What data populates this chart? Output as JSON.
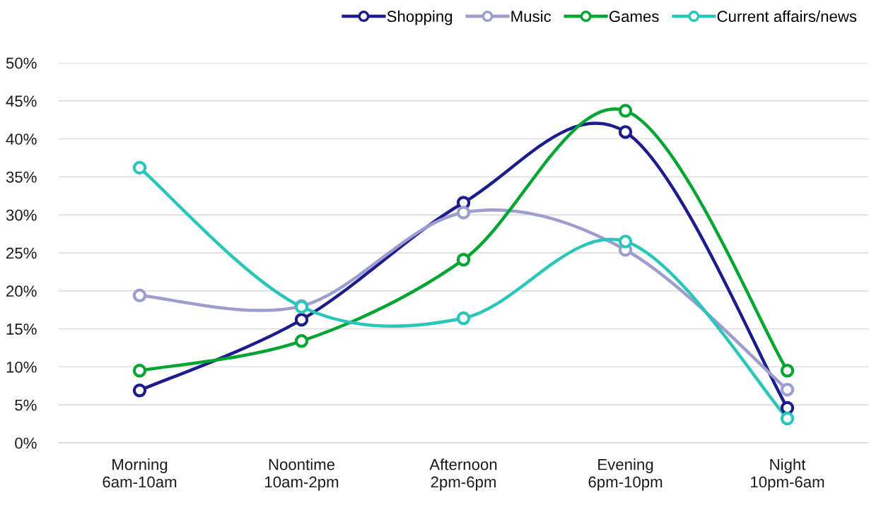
{
  "chart_data": {
    "type": "line",
    "categories": [
      "Morning\n6am-10am",
      "Noontime\n10am-2pm",
      "Afternoon\n2pm-6pm",
      "Evening\n6pm-10pm",
      "Night\n10pm-6am"
    ],
    "series": [
      {
        "name": "Shopping",
        "color": "#1c1c8c",
        "values": [
          6.9,
          16.2,
          31.6,
          40.9,
          4.6
        ]
      },
      {
        "name": "Music",
        "color": "#9d9dcf",
        "values": [
          19.4,
          18.0,
          30.3,
          25.4,
          7.0
        ]
      },
      {
        "name": "Games",
        "color": "#00a532",
        "values": [
          9.5,
          13.4,
          24.1,
          43.7,
          9.5
        ]
      },
      {
        "name": "Current affairs/news",
        "color": "#2ac6ba",
        "values": [
          36.2,
          17.9,
          16.4,
          26.5,
          3.2
        ]
      }
    ],
    "ylim": [
      0,
      50
    ],
    "yticks": [
      {
        "value": 0,
        "label": "0%"
      },
      {
        "value": 5,
        "label": "5%"
      },
      {
        "value": 10,
        "label": "10%"
      },
      {
        "value": 15,
        "label": "15%"
      },
      {
        "value": 20,
        "label": "20%"
      },
      {
        "value": 25,
        "label": "25%"
      },
      {
        "value": 30,
        "label": "30%"
      },
      {
        "value": 35,
        "label": "35%"
      },
      {
        "value": 40,
        "label": "40%"
      },
      {
        "value": 45,
        "label": "45%"
      },
      {
        "value": 50,
        "label": "50%"
      }
    ],
    "grid": "y",
    "legend": "top right",
    "marker": "circle",
    "line_style": "solid"
  }
}
